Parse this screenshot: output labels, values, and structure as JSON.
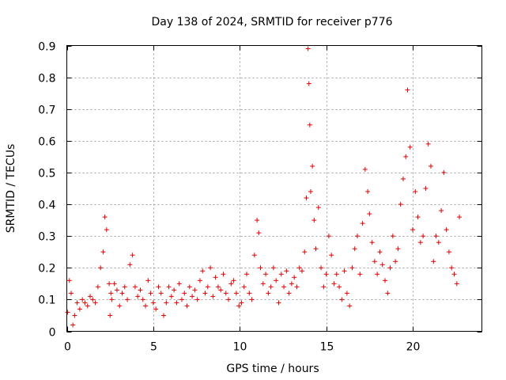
{
  "chart_data": {
    "type": "scatter",
    "title": "Day 138 of 2024, SRMTID for receiver p776",
    "xlabel": "GPS time / hours",
    "ylabel": "SRMTID / TECUs",
    "xlim": [
      0,
      24
    ],
    "ylim": [
      0,
      0.9
    ],
    "xticks": [
      0,
      5,
      10,
      15,
      20
    ],
    "xtick_labels": [
      "0",
      "5",
      "10",
      "15",
      "20"
    ],
    "yticks": [
      0,
      0.1,
      0.2,
      0.3,
      0.4,
      0.5,
      0.6,
      0.7,
      0.8,
      0.9
    ],
    "ytick_labels": [
      "0",
      "0.1",
      "0.2",
      "0.3",
      "0.4",
      "0.5",
      "0.6",
      "0.7",
      "0.8",
      "0.9"
    ],
    "grid": true,
    "marker": "+",
    "marker_color": "#e00000",
    "series": [
      {
        "name": "SRMTID",
        "x": [
          0.05,
          0.15,
          0.25,
          0.35,
          0.45,
          0.6,
          0.75,
          0.9,
          1.05,
          1.2,
          1.35,
          1.5,
          1.65,
          1.8,
          1.95,
          2.1,
          2.2,
          2.3,
          2.45,
          2.5,
          2.55,
          2.6,
          2.75,
          2.9,
          3.05,
          3.2,
          3.35,
          3.5,
          3.65,
          3.8,
          3.95,
          4.1,
          4.25,
          4.4,
          4.55,
          4.7,
          4.85,
          5.0,
          5.15,
          5.3,
          5.45,
          5.6,
          5.75,
          5.9,
          6.05,
          6.2,
          6.35,
          6.5,
          6.65,
          6.8,
          6.95,
          7.1,
          7.25,
          7.4,
          7.55,
          7.7,
          7.85,
          8.0,
          8.15,
          8.3,
          8.45,
          8.6,
          8.75,
          8.9,
          9.05,
          9.2,
          9.35,
          9.5,
          9.65,
          9.8,
          9.95,
          10.1,
          10.25,
          10.4,
          10.55,
          10.7,
          10.85,
          11.0,
          11.1,
          11.2,
          11.35,
          11.5,
          11.65,
          11.8,
          11.95,
          12.1,
          12.25,
          12.4,
          12.55,
          12.7,
          12.85,
          13.0,
          13.15,
          13.3,
          13.45,
          13.6,
          13.75,
          13.85,
          13.95,
          14.0,
          14.05,
          14.1,
          14.2,
          14.3,
          14.4,
          14.55,
          14.7,
          14.85,
          15.0,
          15.15,
          15.3,
          15.45,
          15.6,
          15.75,
          15.9,
          16.05,
          16.2,
          16.35,
          16.5,
          16.65,
          16.8,
          16.95,
          17.1,
          17.25,
          17.4,
          17.5,
          17.65,
          17.8,
          17.95,
          18.1,
          18.25,
          18.4,
          18.55,
          18.7,
          18.85,
          19.0,
          19.15,
          19.3,
          19.45,
          19.6,
          19.7,
          19.85,
          20.0,
          20.15,
          20.3,
          20.45,
          20.6,
          20.75,
          20.9,
          21.05,
          21.2,
          21.35,
          21.5,
          21.65,
          21.8,
          21.95,
          22.1,
          22.25,
          22.4,
          22.55,
          22.7
        ],
        "y": [
          0.06,
          0.16,
          0.12,
          0.02,
          0.05,
          0.09,
          0.07,
          0.1,
          0.09,
          0.08,
          0.11,
          0.1,
          0.09,
          0.14,
          0.2,
          0.25,
          0.36,
          0.32,
          0.15,
          0.05,
          0.12,
          0.1,
          0.15,
          0.13,
          0.08,
          0.12,
          0.14,
          0.1,
          0.21,
          0.24,
          0.14,
          0.11,
          0.13,
          0.1,
          0.08,
          0.16,
          0.12,
          0.09,
          0.07,
          0.14,
          0.12,
          0.05,
          0.09,
          0.14,
          0.11,
          0.13,
          0.09,
          0.15,
          0.1,
          0.12,
          0.08,
          0.14,
          0.11,
          0.13,
          0.1,
          0.16,
          0.19,
          0.12,
          0.14,
          0.2,
          0.11,
          0.17,
          0.14,
          0.13,
          0.18,
          0.12,
          0.1,
          0.15,
          0.16,
          0.12,
          0.08,
          0.09,
          0.14,
          0.18,
          0.12,
          0.1,
          0.24,
          0.35,
          0.31,
          0.2,
          0.15,
          0.18,
          0.12,
          0.14,
          0.2,
          0.16,
          0.09,
          0.18,
          0.14,
          0.19,
          0.12,
          0.15,
          0.17,
          0.14,
          0.2,
          0.19,
          0.25,
          0.42,
          0.89,
          0.78,
          0.65,
          0.44,
          0.52,
          0.35,
          0.26,
          0.39,
          0.2,
          0.14,
          0.18,
          0.3,
          0.24,
          0.15,
          0.18,
          0.14,
          0.1,
          0.19,
          0.12,
          0.08,
          0.2,
          0.26,
          0.3,
          0.18,
          0.34,
          0.51,
          0.44,
          0.37,
          0.28,
          0.22,
          0.18,
          0.25,
          0.21,
          0.16,
          0.12,
          0.2,
          0.3,
          0.22,
          0.26,
          0.4,
          0.48,
          0.55,
          0.76,
          0.58,
          0.32,
          0.44,
          0.36,
          0.28,
          0.3,
          0.45,
          0.59,
          0.52,
          0.22,
          0.3,
          0.28,
          0.38,
          0.5,
          0.32,
          0.25,
          0.2,
          0.18,
          0.15,
          0.36
        ]
      }
    ]
  }
}
